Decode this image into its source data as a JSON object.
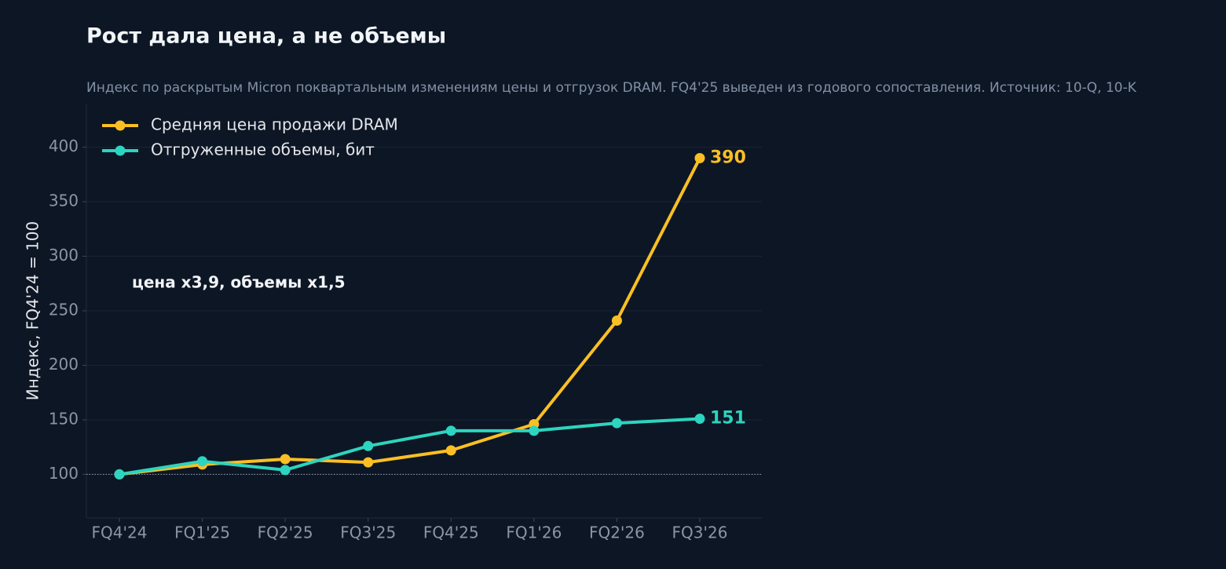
{
  "chart_data": {
    "type": "line",
    "title": "Рост дала цена, а не объемы",
    "subtitle": "Индекс по раскрытым Micron поквартальным изменениям цены и отгрузок DRAM. FQ4'25 выведен из годового сопоставления. Источник: 10-Q, 10-K",
    "y_label": "Индекс, FQ4'24 = 100",
    "annotation": "цена x3,9, объемы x1,5",
    "categories": [
      "FQ4'24",
      "FQ1'25",
      "FQ2'25",
      "FQ3'25",
      "FQ4'25",
      "FQ1'26",
      "FQ2'26",
      "FQ3'26"
    ],
    "series": [
      {
        "name": "Средняя цена продажи DRAM",
        "color": "#fbbf24",
        "values": [
          100,
          109,
          114,
          111,
          122,
          146,
          241,
          390
        ]
      },
      {
        "name": "Отгруженные объемы, бит",
        "color": "#2dd4bf",
        "values": [
          100,
          112,
          104,
          126,
          140,
          140,
          147,
          151
        ]
      }
    ],
    "ylim": [
      60,
      440
    ],
    "yticks": [
      100,
      150,
      200,
      250,
      300,
      350,
      400
    ],
    "grid": true,
    "baseline": 100,
    "legend": "upper-left"
  }
}
